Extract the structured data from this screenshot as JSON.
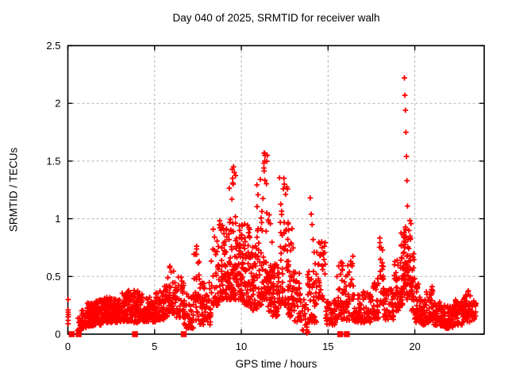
{
  "chart_data": {
    "type": "scatter",
    "title": "Day 040 of 2025, SRMTID for receiver walh",
    "xlabel": "GPS time / hours",
    "ylabel": "SRMTID / TECUs",
    "xlim": [
      0,
      24
    ],
    "ylim": [
      0,
      2.5
    ],
    "xticks": [
      0,
      5,
      10,
      15,
      20
    ],
    "yticks": [
      0,
      0.5,
      1,
      1.5,
      2,
      2.5
    ],
    "xtick_labels": [
      "0",
      "5",
      "10",
      "15",
      "20"
    ],
    "ytick_labels": [
      "0",
      "0.5",
      "1",
      "1.5",
      "2",
      "2.5"
    ],
    "grid": {
      "visible": true,
      "style": "dashed",
      "color": "#b3b3b3"
    },
    "legend": "none",
    "series": [
      {
        "name": "srmtid-plus-markers",
        "marker": "plus",
        "color": "#ff0000",
        "envelope_bins": [
          [
            0.55,
            0.8,
            0.03,
            0.17,
            18,
            1.4
          ],
          [
            0.8,
            1.05,
            0.05,
            0.22,
            28,
            1.4
          ],
          [
            1.05,
            1.55,
            0.07,
            0.27,
            80,
            1.3
          ],
          [
            1.55,
            2.05,
            0.08,
            0.3,
            80,
            1.3
          ],
          [
            2.05,
            2.55,
            0.1,
            0.32,
            75,
            1.3
          ],
          [
            2.55,
            3.05,
            0.1,
            0.31,
            70,
            1.3
          ],
          [
            3.05,
            3.55,
            0.11,
            0.38,
            70,
            1.4
          ],
          [
            3.55,
            4.05,
            0.1,
            0.38,
            65,
            1.4
          ],
          [
            4.05,
            4.55,
            0.11,
            0.35,
            60,
            1.4
          ],
          [
            4.55,
            5.05,
            0.1,
            0.33,
            55,
            1.4
          ],
          [
            5.05,
            5.55,
            0.12,
            0.4,
            55,
            1.5
          ],
          [
            5.55,
            5.85,
            0.15,
            0.52,
            30,
            1.5
          ],
          [
            5.85,
            6.25,
            0.18,
            0.63,
            42,
            1.6
          ],
          [
            6.25,
            6.7,
            0.14,
            0.5,
            35,
            1.6
          ],
          [
            6.7,
            7.25,
            0.05,
            0.35,
            40,
            1.4
          ],
          [
            7.25,
            7.6,
            0.12,
            0.77,
            32,
            1.3
          ],
          [
            7.6,
            8.25,
            0.08,
            0.45,
            65,
            1.5
          ],
          [
            8.25,
            8.7,
            0.25,
            0.92,
            40,
            1.8
          ],
          [
            8.7,
            9.0,
            0.3,
            1.05,
            35,
            1.8
          ],
          [
            9.0,
            9.3,
            0.3,
            0.92,
            38,
            1.6
          ],
          [
            9.3,
            9.7,
            0.3,
            1.47,
            60,
            1.9
          ],
          [
            9.7,
            10.1,
            0.3,
            1.02,
            60,
            1.6
          ],
          [
            10.1,
            10.5,
            0.25,
            0.97,
            50,
            1.7
          ],
          [
            10.5,
            10.9,
            0.2,
            0.78,
            45,
            1.6
          ],
          [
            10.9,
            11.2,
            0.25,
            1.45,
            40,
            2.3
          ],
          [
            11.2,
            11.5,
            0.3,
            1.58,
            42,
            2.3
          ],
          [
            11.5,
            11.8,
            0.2,
            1.05,
            40,
            2.1
          ],
          [
            11.8,
            12.2,
            0.15,
            0.62,
            48,
            1.5
          ],
          [
            12.2,
            12.7,
            0.25,
            1.36,
            52,
            2.1
          ],
          [
            12.7,
            13.0,
            0.15,
            0.92,
            40,
            1.9
          ],
          [
            13.0,
            13.45,
            0.1,
            0.55,
            40,
            1.5
          ],
          [
            13.45,
            13.8,
            0.03,
            0.32,
            16,
            1.4
          ],
          [
            13.8,
            14.35,
            0.1,
            0.55,
            42,
            1.5
          ],
          [
            14.35,
            14.85,
            0.3,
            0.8,
            40,
            1.6
          ],
          [
            14.85,
            15.45,
            0.08,
            0.3,
            48,
            1.4
          ],
          [
            15.45,
            16.0,
            0.13,
            0.67,
            48,
            1.6
          ],
          [
            16.0,
            16.5,
            0.12,
            0.68,
            45,
            1.6
          ],
          [
            16.5,
            17.0,
            0.1,
            0.35,
            42,
            1.4
          ],
          [
            17.0,
            17.55,
            0.1,
            0.38,
            42,
            1.4
          ],
          [
            17.55,
            17.95,
            0.13,
            0.5,
            35,
            1.5
          ],
          [
            17.95,
            18.2,
            0.25,
            0.85,
            25,
            1.4
          ],
          [
            18.2,
            18.8,
            0.12,
            0.4,
            48,
            1.4
          ],
          [
            18.8,
            19.15,
            0.2,
            0.65,
            35,
            1.4
          ],
          [
            19.15,
            19.45,
            0.25,
            0.88,
            45,
            1.4
          ],
          [
            19.45,
            19.78,
            0.3,
            1.0,
            50,
            1.4
          ],
          [
            19.78,
            20.0,
            0.2,
            0.7,
            25,
            1.5
          ],
          [
            20.0,
            20.3,
            0.1,
            0.45,
            30,
            1.5
          ],
          [
            20.3,
            20.65,
            0.08,
            0.3,
            40,
            1.4
          ],
          [
            20.65,
            21.1,
            0.1,
            0.42,
            42,
            1.5
          ],
          [
            21.1,
            21.7,
            0.07,
            0.28,
            55,
            1.3
          ],
          [
            21.7,
            22.3,
            0.05,
            0.25,
            55,
            1.3
          ],
          [
            22.3,
            22.75,
            0.08,
            0.3,
            42,
            1.4
          ],
          [
            22.75,
            23.2,
            0.1,
            0.38,
            45,
            1.4
          ],
          [
            23.2,
            23.55,
            0.12,
            0.3,
            30,
            1.3
          ]
        ],
        "points": [
          [
            0.02,
            0.09
          ],
          [
            0.02,
            0.12
          ],
          [
            0.02,
            0.15
          ],
          [
            0.03,
            0.17
          ],
          [
            0.02,
            0.19
          ],
          [
            0.02,
            0.21
          ],
          [
            0.02,
            0.3
          ],
          [
            0.66,
            0.02
          ],
          [
            13.78,
            0.01
          ],
          [
            13.85,
            0.02
          ],
          [
            13.97,
            1.18
          ],
          [
            14.03,
            1.04
          ],
          [
            14.08,
            0.95
          ],
          [
            14.14,
            0.82
          ],
          [
            14.2,
            0.71
          ],
          [
            14.26,
            0.61
          ],
          [
            14.32,
            0.52
          ],
          [
            19.4,
            2.22
          ],
          [
            19.43,
            2.07
          ],
          [
            19.46,
            1.94
          ],
          [
            19.49,
            1.75
          ],
          [
            19.52,
            1.54
          ],
          [
            19.55,
            1.33
          ],
          [
            19.58,
            1.11
          ],
          [
            11.32,
            1.57
          ],
          [
            11.35,
            1.5
          ],
          [
            11.3,
            1.44
          ],
          [
            9.55,
            1.45
          ],
          [
            9.6,
            1.4
          ],
          [
            9.5,
            1.35
          ],
          [
            12.45,
            1.35
          ],
          [
            12.48,
            1.3
          ],
          [
            12.42,
            1.26
          ]
        ]
      },
      {
        "name": "flag-square-markers",
        "marker": "square",
        "color": "#ff0000",
        "points": [
          [
            0.22,
            0
          ],
          [
            0.62,
            0
          ],
          [
            3.87,
            0
          ],
          [
            6.68,
            0
          ],
          [
            15.7,
            0
          ],
          [
            16.08,
            0
          ]
        ]
      }
    ]
  }
}
